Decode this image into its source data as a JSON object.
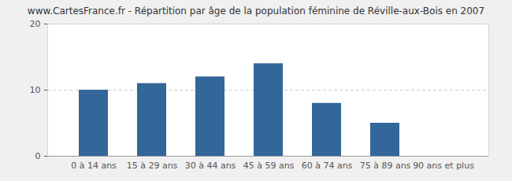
{
  "chart_data": {
    "type": "bar",
    "title": "www.CartesFrance.fr - Répartition par âge de la population féminine de Réville-aux-Bois en 2007",
    "categories": [
      "0 à 14 ans",
      "15 à 29 ans",
      "30 à 44 ans",
      "45 à 59 ans",
      "60 à 74 ans",
      "75 à 89 ans",
      "90 ans et plus"
    ],
    "values": [
      10,
      11,
      12,
      14,
      8,
      5,
      0
    ],
    "color": "#336699",
    "ylim": [
      0,
      20
    ],
    "yticks": [
      0,
      10,
      20
    ],
    "grid": true
  }
}
